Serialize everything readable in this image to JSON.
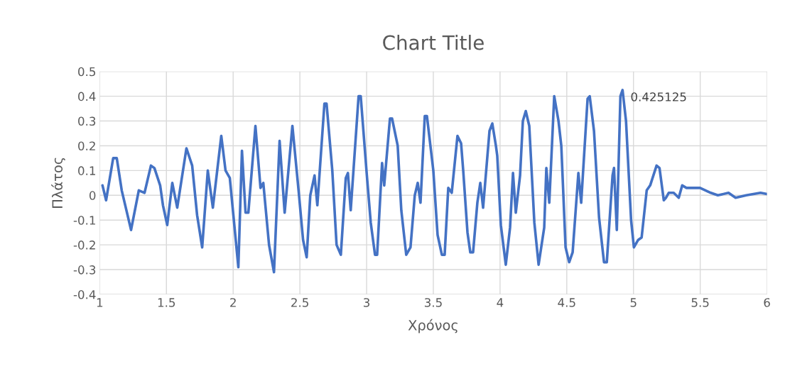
{
  "chart_data": {
    "type": "line",
    "title": "Chart Title",
    "xlabel": "Χρόνος",
    "ylabel": "Πλάτος",
    "xlim": [
      1,
      6
    ],
    "xticks": [
      1,
      1.5,
      2,
      2.5,
      3,
      3.5,
      4,
      4.5,
      5,
      5.5,
      6
    ],
    "ylim": [
      -0.4,
      0.5
    ],
    "yticks": [
      -0.4,
      -0.3,
      -0.2,
      -0.1,
      0,
      0.1,
      0.2,
      0.3,
      0.4,
      0.5
    ],
    "grid": true,
    "legend": false,
    "marker": "none",
    "line_style": "solid",
    "annotations": [
      {
        "text": "0.425125",
        "x": 4.918,
        "y": 0.425
      }
    ],
    "series": [
      {
        "color": "#4472c4",
        "x": [
          1.021,
          1.048,
          1.101,
          1.128,
          1.165,
          1.235,
          1.293,
          1.336,
          1.384,
          1.41,
          1.453,
          1.474,
          1.506,
          1.544,
          1.581,
          1.65,
          1.693,
          1.73,
          1.768,
          1.81,
          1.848,
          1.911,
          1.943,
          1.975,
          2.039,
          2.066,
          2.093,
          2.114,
          2.167,
          2.205,
          2.226,
          2.269,
          2.306,
          2.348,
          2.386,
          2.444,
          2.492,
          2.524,
          2.551,
          2.578,
          2.61,
          2.631,
          2.684,
          2.7,
          2.743,
          2.775,
          2.807,
          2.844,
          2.86,
          2.881,
          2.94,
          2.956,
          2.999,
          3.031,
          3.063,
          3.079,
          3.116,
          3.132,
          3.175,
          3.191,
          3.233,
          3.26,
          3.297,
          3.329,
          3.361,
          3.383,
          3.404,
          3.436,
          3.452,
          3.5,
          3.532,
          3.564,
          3.585,
          3.612,
          3.638,
          3.681,
          3.708,
          3.724,
          3.756,
          3.777,
          3.798,
          3.83,
          3.852,
          3.873,
          3.921,
          3.942,
          3.969,
          3.979,
          4.006,
          4.043,
          4.075,
          4.097,
          4.118,
          4.15,
          4.171,
          4.193,
          4.219,
          4.257,
          4.289,
          4.331,
          4.347,
          4.369,
          4.406,
          4.438,
          4.459,
          4.491,
          4.518,
          4.544,
          4.587,
          4.608,
          4.656,
          4.672,
          4.704,
          4.742,
          4.779,
          4.8,
          4.843,
          4.854,
          4.875,
          4.902,
          4.918,
          4.944,
          4.982,
          5.003,
          5.035,
          5.061,
          5.099,
          5.125,
          5.173,
          5.195,
          5.227,
          5.243,
          5.264,
          5.301,
          5.339,
          5.365,
          5.397,
          5.445,
          5.499,
          5.579,
          5.632,
          5.712,
          5.765,
          5.845,
          5.952,
          6.0
        ],
        "values": [
          0.04,
          -0.02,
          0.15,
          0.15,
          0.02,
          -0.14,
          0.02,
          0.01,
          0.12,
          0.11,
          0.04,
          -0.04,
          -0.12,
          0.05,
          -0.05,
          0.19,
          0.12,
          -0.08,
          -0.21,
          0.1,
          -0.05,
          0.24,
          0.1,
          0.07,
          -0.29,
          0.18,
          -0.07,
          -0.07,
          0.28,
          0.03,
          0.05,
          -0.2,
          -0.31,
          0.22,
          -0.07,
          0.28,
          0.01,
          -0.18,
          -0.25,
          0.0,
          0.08,
          -0.04,
          0.37,
          0.37,
          0.1,
          -0.2,
          -0.24,
          0.07,
          0.09,
          -0.06,
          0.4,
          0.4,
          0.1,
          -0.11,
          -0.24,
          -0.24,
          0.13,
          0.04,
          0.31,
          0.31,
          0.2,
          -0.06,
          -0.24,
          -0.21,
          0.0,
          0.05,
          -0.03,
          0.32,
          0.32,
          0.1,
          -0.16,
          -0.24,
          -0.24,
          0.03,
          0.01,
          0.24,
          0.21,
          0.1,
          -0.15,
          -0.23,
          -0.23,
          -0.03,
          0.05,
          -0.05,
          0.26,
          0.29,
          0.2,
          0.16,
          -0.12,
          -0.28,
          -0.13,
          0.09,
          -0.07,
          0.08,
          0.3,
          0.34,
          0.28,
          -0.11,
          -0.28,
          -0.13,
          0.11,
          -0.03,
          0.4,
          0.3,
          0.2,
          -0.21,
          -0.27,
          -0.23,
          0.09,
          -0.03,
          0.39,
          0.4,
          0.26,
          -0.09,
          -0.27,
          -0.27,
          0.08,
          0.11,
          -0.14,
          0.4,
          0.425,
          0.3,
          -0.1,
          -0.21,
          -0.18,
          -0.17,
          0.02,
          0.04,
          0.12,
          0.11,
          -0.02,
          -0.01,
          0.01,
          0.01,
          -0.01,
          0.04,
          0.03,
          0.03,
          0.03,
          0.01,
          0.0,
          0.01,
          -0.01,
          0.0,
          0.01,
          0.005
        ]
      }
    ]
  }
}
